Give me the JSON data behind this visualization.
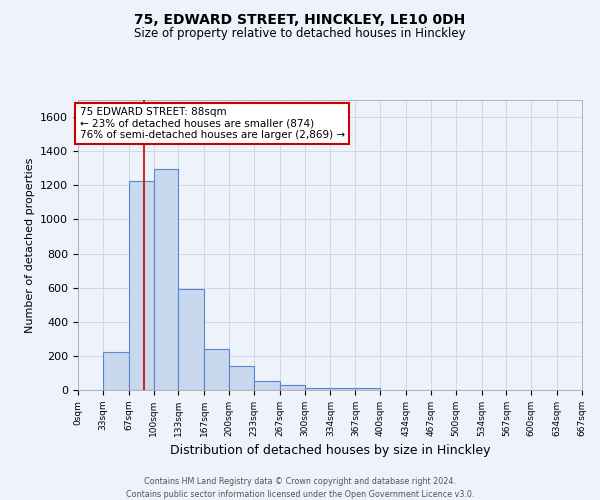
{
  "title_line1": "75, EDWARD STREET, HINCKLEY, LE10 0DH",
  "title_line2": "Size of property relative to detached houses in Hinckley",
  "xlabel": "Distribution of detached houses by size in Hinckley",
  "ylabel": "Number of detached properties",
  "bar_edges": [
    0,
    33,
    67,
    100,
    133,
    167,
    200,
    233,
    267,
    300,
    334,
    367,
    400,
    434,
    467,
    500,
    534,
    567,
    600,
    634,
    667
  ],
  "bar_heights": [
    0,
    220,
    1225,
    1295,
    590,
    240,
    140,
    55,
    30,
    10,
    10,
    10,
    0,
    0,
    0,
    0,
    0,
    0,
    0,
    0
  ],
  "bar_color": "#c8d8ee",
  "bar_edge_color": "#5588cc",
  "property_line_x": 88,
  "ylim": [
    0,
    1700
  ],
  "yticks": [
    0,
    200,
    400,
    600,
    800,
    1000,
    1200,
    1400,
    1600
  ],
  "xtick_labels": [
    "0sqm",
    "33sqm",
    "67sqm",
    "100sqm",
    "133sqm",
    "167sqm",
    "200sqm",
    "233sqm",
    "267sqm",
    "300sqm",
    "334sqm",
    "367sqm",
    "400sqm",
    "434sqm",
    "467sqm",
    "500sqm",
    "534sqm",
    "567sqm",
    "600sqm",
    "634sqm",
    "667sqm"
  ],
  "annotation_title": "75 EDWARD STREET: 88sqm",
  "annotation_line1": "← 23% of detached houses are smaller (874)",
  "annotation_line2": "76% of semi-detached houses are larger (2,869) →",
  "annotation_box_color": "#ffffff",
  "annotation_box_edge_color": "#cc0000",
  "footer_line1": "Contains HM Land Registry data © Crown copyright and database right 2024.",
  "footer_line2": "Contains public sector information licensed under the Open Government Licence v3.0.",
  "grid_color": "#d0d8e8",
  "background_color": "#eef2fa"
}
